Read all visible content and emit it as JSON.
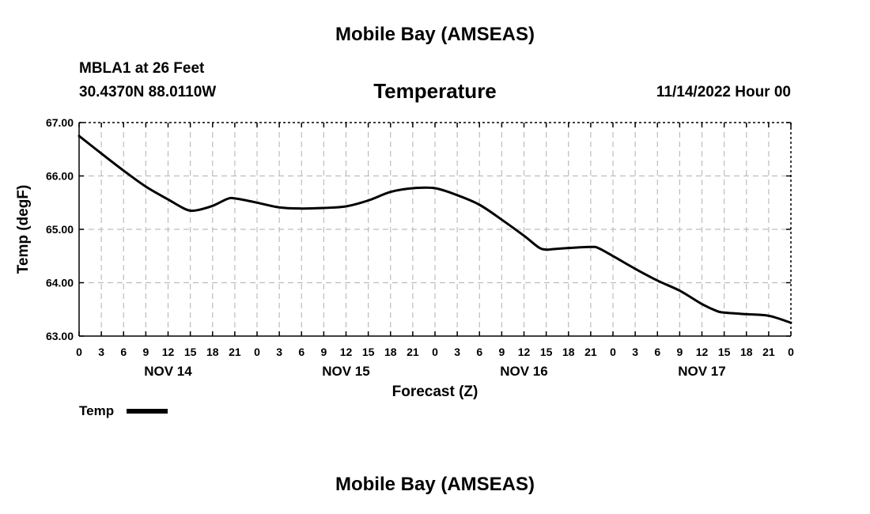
{
  "header": {
    "title_top": "Mobile Bay (AMSEAS)",
    "station": "MBLA1 at 26 Feet",
    "coords": "30.4370N  88.0110W",
    "variable": "Temperature",
    "datetime": "11/14/2022 Hour 00",
    "title_bottom": "Mobile Bay (AMSEAS)"
  },
  "chart_data": {
    "type": "line",
    "xlabel": "Forecast (Z)",
    "ylabel": "Temp (degF)",
    "ylim": [
      63.0,
      67.0
    ],
    "y_ticks": [
      "63.00",
      "64.00",
      "65.00",
      "66.00",
      "67.00"
    ],
    "x_range_hours": [
      0,
      96
    ],
    "x_tick_labels": [
      "0",
      "3",
      "6",
      "9",
      "12",
      "15",
      "18",
      "21",
      "0",
      "3",
      "6",
      "9",
      "12",
      "15",
      "18",
      "21",
      "0",
      "3",
      "6",
      "9",
      "12",
      "15",
      "18",
      "21",
      "0",
      "3",
      "6",
      "9",
      "12",
      "15",
      "18",
      "21",
      "0"
    ],
    "day_labels": [
      {
        "label": "NOV 14",
        "hour": 12
      },
      {
        "label": "NOV 15",
        "hour": 36
      },
      {
        "label": "NOV 16",
        "hour": 60
      },
      {
        "label": "NOV 17",
        "hour": 84
      }
    ],
    "grid": true,
    "legend": {
      "label": "Temp",
      "position": "bottom-left"
    },
    "series": [
      {
        "name": "Temp",
        "x": [
          0,
          3,
          6,
          9,
          12,
          14,
          15,
          16,
          18,
          20,
          21,
          24,
          27,
          30,
          33,
          36,
          39,
          42,
          45,
          48,
          51,
          54,
          57,
          60,
          62,
          63,
          64,
          66,
          69,
          70,
          72,
          75,
          78,
          81,
          84,
          86,
          87,
          90,
          93,
          96
        ],
        "values": [
          66.75,
          66.42,
          66.1,
          65.8,
          65.56,
          65.4,
          65.35,
          65.36,
          65.44,
          65.57,
          65.58,
          65.5,
          65.41,
          65.39,
          65.4,
          65.43,
          65.54,
          65.7,
          65.77,
          65.77,
          65.64,
          65.46,
          65.18,
          64.88,
          64.66,
          64.62,
          64.63,
          64.65,
          64.67,
          64.65,
          64.5,
          64.26,
          64.04,
          63.85,
          63.6,
          63.47,
          63.44,
          63.41,
          63.38,
          63.25
        ]
      }
    ]
  }
}
